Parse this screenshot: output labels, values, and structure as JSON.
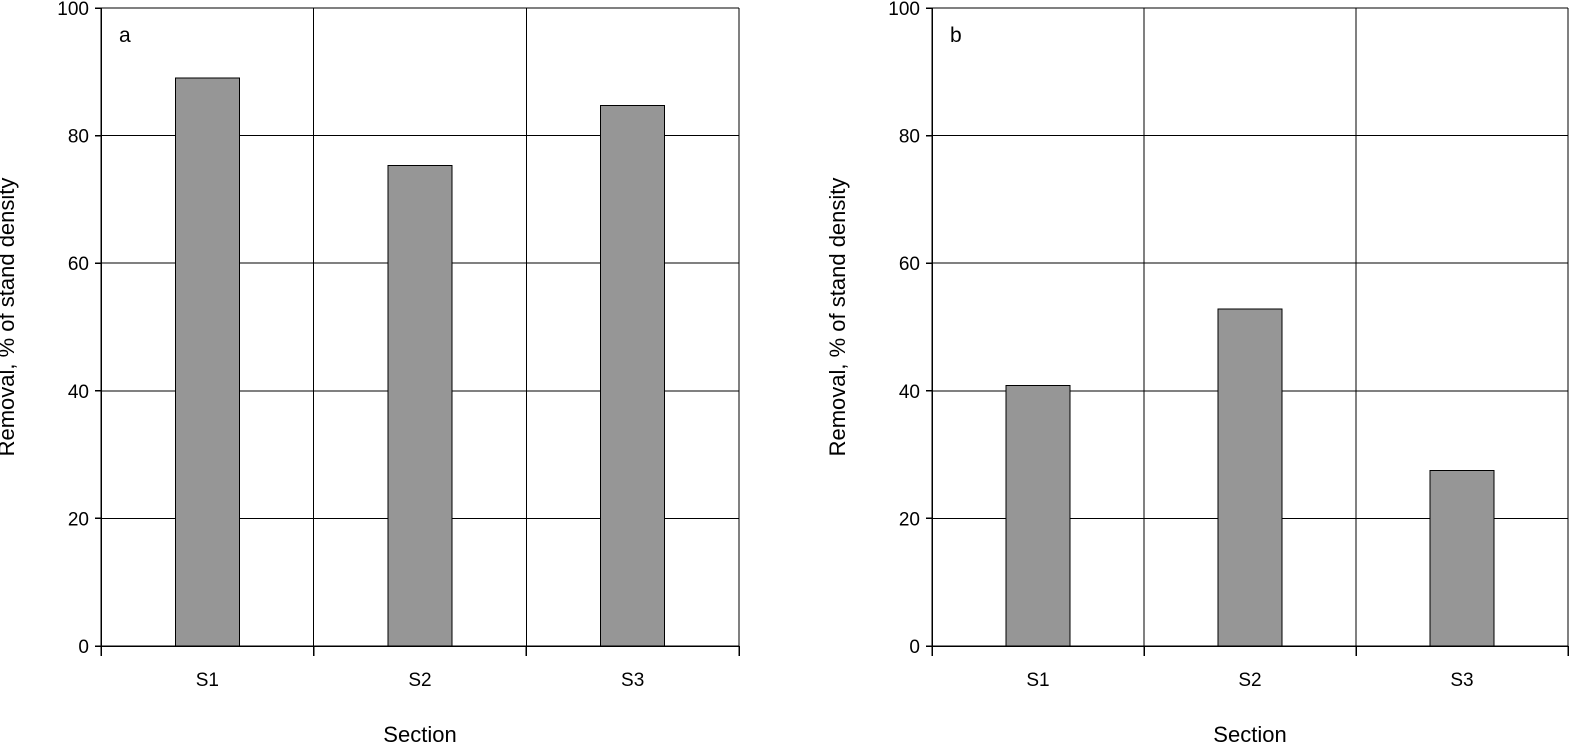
{
  "chart_data": [
    {
      "type": "bar",
      "panel_label": "a",
      "categories": [
        "S1",
        "S2",
        "S3"
      ],
      "values": [
        89,
        75.3,
        84.7
      ],
      "xlabel": "Section",
      "ylabel": "Removal, % of stand density",
      "ylim": [
        0,
        100
      ],
      "yticks": [
        0,
        20,
        40,
        60,
        80,
        100
      ],
      "grid": true,
      "bar_color": "#969696"
    },
    {
      "type": "bar",
      "panel_label": "b",
      "categories": [
        "S1",
        "S2",
        "S3"
      ],
      "values": [
        40.8,
        52.8,
        27.5
      ],
      "xlabel": "Section",
      "ylabel": "Removal, % of stand density",
      "ylim": [
        0,
        100
      ],
      "yticks": [
        0,
        20,
        40,
        60,
        80,
        100
      ],
      "grid": true,
      "bar_color": "#969696"
    }
  ]
}
